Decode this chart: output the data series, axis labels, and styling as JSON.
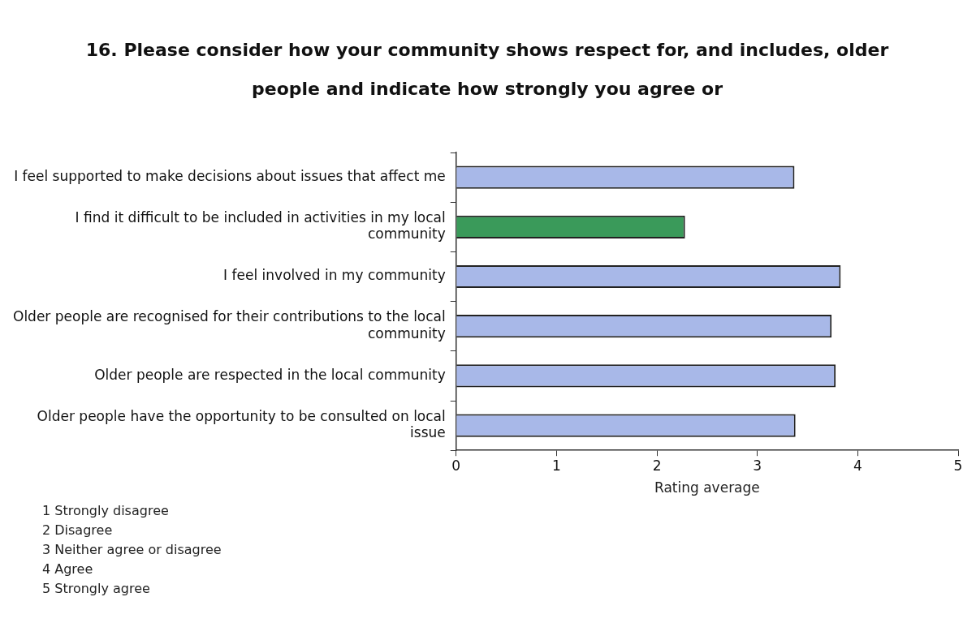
{
  "chart_data": {
    "type": "bar",
    "orientation": "horizontal",
    "title": "16. Please consider how your community shows respect for, and includes, older people and indicate how strongly you agree or",
    "categories": [
      "I feel supported to make decisions about issues that affect me",
      "I find it difficult to be included in activities in my local community",
      "I feel involved in my community",
      "Older people are recognised for their contributions to the local community",
      "Older people are respected in the local community",
      "Older people have the opportunity to be consulted on local issue"
    ],
    "values": [
      3.37,
      2.28,
      3.83,
      3.74,
      3.78,
      3.38
    ],
    "colors": [
      "#a8b8e8",
      "#3a9a5a",
      "#a8b8e8",
      "#a8b8e8",
      "#a8b8e8",
      "#a8b8e8"
    ],
    "xlabel": "Rating average",
    "xlim": [
      0,
      5
    ],
    "xticks": [
      0,
      1,
      2,
      3,
      4,
      5
    ],
    "grid": false,
    "legend": false,
    "annotations": [
      "1 Strongly disagree",
      "2 Disagree",
      "3 Neither agree or disagree",
      "4 Agree",
      "5 Strongly agree"
    ]
  }
}
